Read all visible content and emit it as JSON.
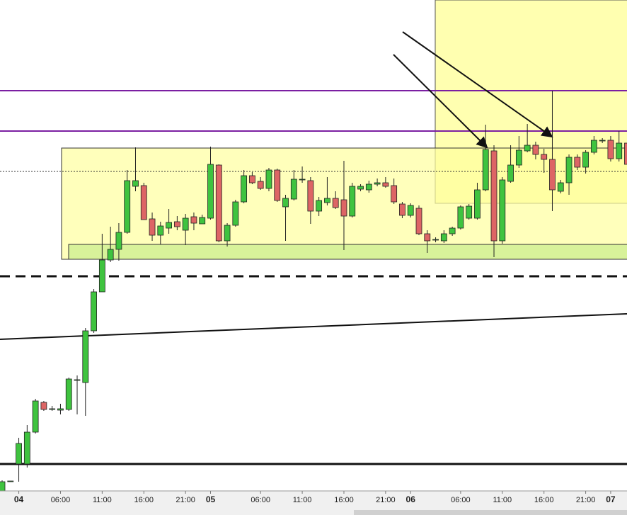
{
  "chart_data": {
    "type": "candlestick",
    "categories": [
      null,
      null,
      "04",
      null,
      null,
      null,
      null,
      "06:00",
      null,
      null,
      null,
      null,
      "11:00",
      null,
      null,
      null,
      null,
      "16:00",
      null,
      null,
      null,
      null,
      "21:00",
      null,
      null,
      "05",
      null,
      null,
      null,
      null,
      null,
      "06:00",
      null,
      null,
      null,
      null,
      "11:00",
      null,
      null,
      null,
      null,
      "16:00",
      null,
      null,
      null,
      null,
      "21:00",
      null,
      null,
      "06",
      null,
      null,
      null,
      null,
      null,
      "06:00",
      null,
      null,
      null,
      null,
      "11:00",
      null,
      null,
      null,
      null,
      "16:00",
      null,
      null,
      null,
      null,
      "21:00",
      null,
      null,
      "07",
      null,
      null
    ],
    "open": [
      0,
      14,
      38,
      38,
      83,
      125,
      116,
      114,
      115,
      157,
      153,
      226,
      281,
      326,
      341,
      365,
      430,
      431,
      384,
      361,
      371,
      380,
      368,
      387,
      377,
      385,
      460,
      353,
      375,
      408,
      445,
      437,
      427,
      453,
      401,
      412,
      440,
      438,
      395,
      407,
      413,
      411,
      388,
      426,
      425,
      433,
      435,
      431,
      405,
      389,
      399,
      363,
      355,
      353,
      363,
      371,
      385,
      385,
      425,
      480,
      353,
      437,
      460,
      480,
      488,
      475,
      468,
      423,
      435,
      471,
      457,
      478,
      495,
      495,
      469,
      491
    ],
    "high": [
      15,
      14,
      75,
      93,
      130,
      127,
      120,
      123,
      160,
      163,
      230,
      285,
      363,
      373,
      378,
      453,
      485,
      435,
      393,
      380,
      398,
      388,
      391,
      393,
      390,
      486,
      461,
      378,
      411,
      453,
      450,
      443,
      456,
      455,
      418,
      453,
      458,
      443,
      415,
      443,
      423,
      466,
      435,
      433,
      438,
      441,
      443,
      441,
      408,
      406,
      403,
      368,
      358,
      368,
      373,
      403,
      405,
      435,
      517,
      488,
      443,
      488,
      501,
      518,
      493,
      483,
      565,
      439,
      475,
      475,
      481,
      501,
      498,
      501,
      508,
      493
    ],
    "low": [
      0,
      14,
      13,
      33,
      81,
      113,
      113,
      108,
      113,
      108,
      106,
      223,
      281,
      323,
      325,
      363,
      423,
      383,
      353,
      348,
      363,
      368,
      347,
      368,
      377,
      383,
      351,
      345,
      373,
      406,
      433,
      425,
      423,
      408,
      353,
      410,
      435,
      377,
      388,
      403,
      398,
      340,
      386,
      423,
      421,
      430,
      428,
      405,
      385,
      386,
      361,
      336,
      351,
      350,
      360,
      369,
      383,
      383,
      423,
      330,
      349,
      435,
      456,
      478,
      468,
      449,
      395,
      420,
      418,
      453,
      448,
      475,
      491,
      465,
      465,
      458
    ],
    "close": [
      13,
      14,
      67,
      83,
      127,
      115,
      116,
      116,
      158,
      157,
      226,
      281,
      326,
      341,
      365,
      438,
      438,
      383,
      361,
      374,
      379,
      373,
      385,
      378,
      386,
      461,
      353,
      375,
      408,
      445,
      435,
      427,
      453,
      410,
      413,
      440,
      440,
      395,
      410,
      413,
      400,
      388,
      430,
      430,
      433,
      435,
      430,
      408,
      389,
      403,
      363,
      353,
      355,
      363,
      371,
      401,
      402,
      425,
      482,
      353,
      439,
      460,
      481,
      488,
      475,
      468,
      425,
      435,
      471,
      457,
      478,
      495,
      495,
      469,
      491,
      461
    ],
    "ylim": [
      0,
      693
    ],
    "up_color": "#3fc33f",
    "down_color": "#dd6565"
  }
}
